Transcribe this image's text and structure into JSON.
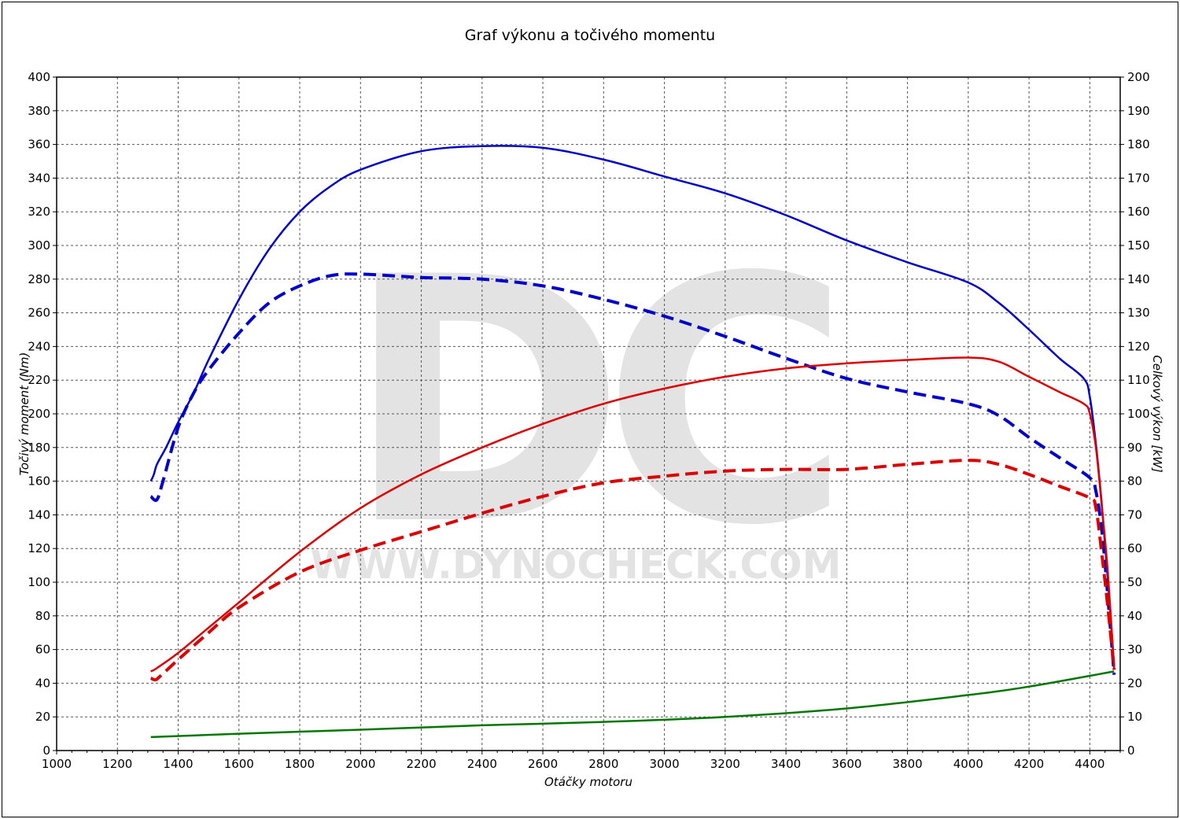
{
  "title": "Graf výkonu a točivého momentu",
  "watermark": {
    "logo_text": "DC",
    "url_text": "WWW.DYNOCHECK.COM",
    "color": "#e3e3e3"
  },
  "colors": {
    "torque": "#0000cc",
    "power": "#dd0000",
    "loss": "#007700",
    "grid": "#555555"
  },
  "chart_data": {
    "type": "line",
    "xlabel": "Otáčky motoru",
    "ylabel": "Točivý moment (Nm)",
    "y2label": "Celkový výkon [kW]",
    "xlim": [
      1000,
      4500
    ],
    "ylim": [
      0,
      400
    ],
    "y2lim": [
      0,
      200
    ],
    "x_ticks": [
      1000,
      1200,
      1400,
      1600,
      1800,
      2000,
      2200,
      2400,
      2600,
      2800,
      3000,
      3200,
      3400,
      3600,
      3800,
      4000,
      4200,
      4400
    ],
    "y_ticks": [
      0,
      20,
      40,
      60,
      80,
      100,
      120,
      140,
      160,
      180,
      200,
      220,
      240,
      260,
      280,
      300,
      320,
      340,
      360,
      380,
      400
    ],
    "y2_ticks": [
      0,
      10,
      20,
      30,
      40,
      50,
      60,
      70,
      80,
      90,
      100,
      110,
      120,
      130,
      140,
      150,
      160,
      170,
      180,
      190,
      200
    ],
    "grid": true,
    "series": [
      {
        "key": "torque_tuned",
        "axis": "left",
        "color": "#0000cc",
        "dashed": false,
        "points": [
          [
            1310,
            160
          ],
          [
            1320,
            164
          ],
          [
            1330,
            170
          ],
          [
            1360,
            180
          ],
          [
            1400,
            195
          ],
          [
            1450,
            212
          ],
          [
            1500,
            232
          ],
          [
            1600,
            268
          ],
          [
            1700,
            298
          ],
          [
            1800,
            320
          ],
          [
            1900,
            335
          ],
          [
            2000,
            345
          ],
          [
            2200,
            356
          ],
          [
            2400,
            359
          ],
          [
            2600,
            358
          ],
          [
            2800,
            351
          ],
          [
            3000,
            341
          ],
          [
            3200,
            331
          ],
          [
            3400,
            318
          ],
          [
            3600,
            303
          ],
          [
            3800,
            290
          ],
          [
            4000,
            278
          ],
          [
            4100,
            266
          ],
          [
            4200,
            250
          ],
          [
            4300,
            233
          ],
          [
            4380,
            221
          ],
          [
            4400,
            210
          ],
          [
            4420,
            182
          ],
          [
            4440,
            145
          ],
          [
            4460,
            100
          ],
          [
            4480,
            50
          ]
        ]
      },
      {
        "key": "torque_stock",
        "axis": "left",
        "color": "#0000cc",
        "dashed": true,
        "points": [
          [
            1310,
            151
          ],
          [
            1330,
            149
          ],
          [
            1350,
            160
          ],
          [
            1400,
            192
          ],
          [
            1450,
            212
          ],
          [
            1500,
            226
          ],
          [
            1600,
            248
          ],
          [
            1700,
            266
          ],
          [
            1800,
            276
          ],
          [
            1900,
            282
          ],
          [
            2000,
            283
          ],
          [
            2200,
            281
          ],
          [
            2400,
            280
          ],
          [
            2600,
            276
          ],
          [
            2800,
            268
          ],
          [
            3000,
            258
          ],
          [
            3200,
            246
          ],
          [
            3400,
            233
          ],
          [
            3600,
            221
          ],
          [
            3800,
            213
          ],
          [
            4000,
            206
          ],
          [
            4100,
            199
          ],
          [
            4200,
            186
          ],
          [
            4300,
            174
          ],
          [
            4400,
            162
          ],
          [
            4420,
            154
          ],
          [
            4440,
            130
          ],
          [
            4460,
            90
          ],
          [
            4480,
            45
          ]
        ]
      },
      {
        "key": "power_tuned",
        "axis": "right",
        "color": "#dd0000",
        "dashed": false,
        "points": [
          [
            1310,
            23.5
          ],
          [
            1330,
            24.5
          ],
          [
            1400,
            29
          ],
          [
            1500,
            36.5
          ],
          [
            1600,
            44
          ],
          [
            1800,
            59
          ],
          [
            2000,
            72
          ],
          [
            2200,
            82
          ],
          [
            2400,
            90
          ],
          [
            2600,
            97
          ],
          [
            2800,
            103
          ],
          [
            3000,
            107.5
          ],
          [
            3200,
            111
          ],
          [
            3400,
            113.5
          ],
          [
            3600,
            115
          ],
          [
            3800,
            116
          ],
          [
            4000,
            116.7
          ],
          [
            4100,
            115.5
          ],
          [
            4200,
            111
          ],
          [
            4300,
            106.5
          ],
          [
            4380,
            103
          ],
          [
            4400,
            100
          ],
          [
            4420,
            90
          ],
          [
            4440,
            72
          ],
          [
            4460,
            52
          ],
          [
            4480,
            24
          ]
        ]
      },
      {
        "key": "power_stock",
        "axis": "right",
        "color": "#dd0000",
        "dashed": true,
        "points": [
          [
            1310,
            21.5
          ],
          [
            1325,
            21
          ],
          [
            1340,
            22
          ],
          [
            1400,
            27
          ],
          [
            1500,
            35
          ],
          [
            1600,
            42.5
          ],
          [
            1800,
            53
          ],
          [
            2000,
            59.5
          ],
          [
            2200,
            65
          ],
          [
            2400,
            70.5
          ],
          [
            2600,
            75.5
          ],
          [
            2800,
            79.5
          ],
          [
            3000,
            81.5
          ],
          [
            3200,
            83
          ],
          [
            3400,
            83.5
          ],
          [
            3600,
            83.5
          ],
          [
            3800,
            85
          ],
          [
            4000,
            86.2
          ],
          [
            4100,
            85
          ],
          [
            4200,
            82
          ],
          [
            4300,
            78.5
          ],
          [
            4400,
            75
          ],
          [
            4420,
            72
          ],
          [
            4440,
            58
          ],
          [
            4460,
            42
          ],
          [
            4480,
            24
          ]
        ]
      },
      {
        "key": "power_loss",
        "axis": "right",
        "color": "#007700",
        "dashed": false,
        "points": [
          [
            1310,
            4
          ],
          [
            1600,
            5
          ],
          [
            2000,
            6.2
          ],
          [
            2400,
            7.5
          ],
          [
            2800,
            8.5
          ],
          [
            3200,
            10
          ],
          [
            3600,
            12.5
          ],
          [
            4000,
            16.5
          ],
          [
            4200,
            19
          ],
          [
            4480,
            23.5
          ]
        ]
      }
    ]
  }
}
